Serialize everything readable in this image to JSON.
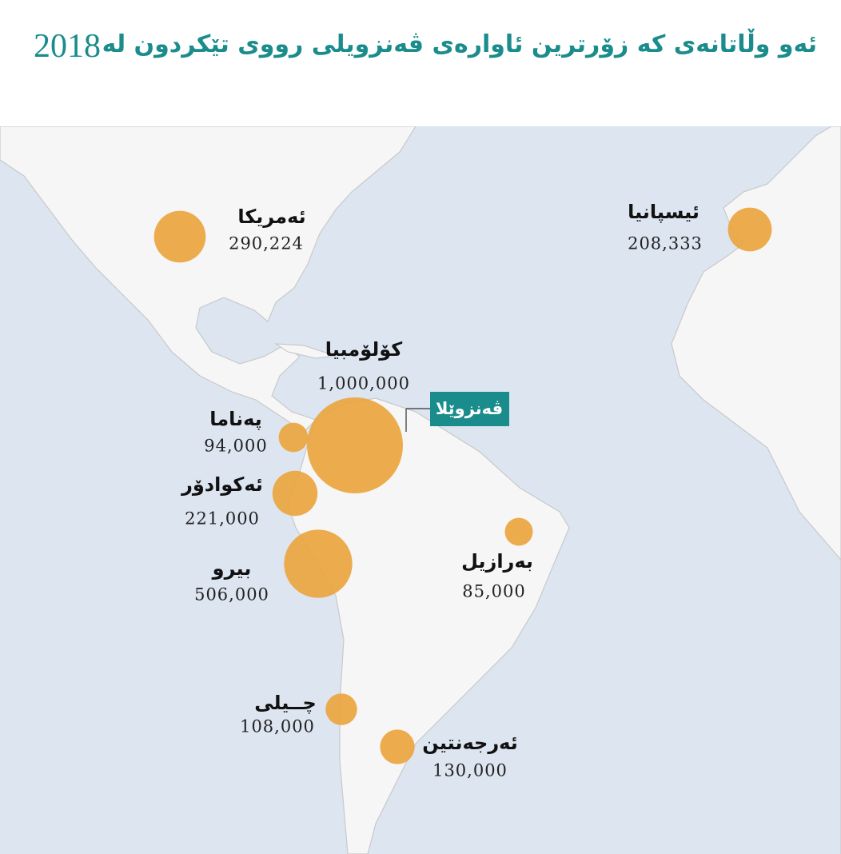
{
  "title": "ئەو وڵاتانەی کە زۆرترین ئاوارەی ڤەنزویلی رووی تێکردون لە",
  "year": "2018",
  "origin": "ڤەنزوێلا",
  "countries": [
    {
      "name": "ئەمریکا",
      "value": 290224,
      "value_label": "290,224"
    },
    {
      "name": "ئیسپانیا",
      "value": 208333,
      "value_label": "208,333"
    },
    {
      "name": "کۆلۆمبیا",
      "value": 1000000,
      "value_label": "1,000,000"
    },
    {
      "name": "پەناما",
      "value": 94000,
      "value_label": "94,000"
    },
    {
      "name": "ئەکوادۆر",
      "value": 221000,
      "value_label": "221,000"
    },
    {
      "name": "بیرو",
      "value": 506000,
      "value_label": "506,000"
    },
    {
      "name": "بەرازیل",
      "value": 85000,
      "value_label": "85,000"
    },
    {
      "name": "چــیلی",
      "value": 108000,
      "value_label": "108,000"
    },
    {
      "name": "ئەرجەنتین",
      "value": 130000,
      "value_label": "130,000"
    }
  ]
}
